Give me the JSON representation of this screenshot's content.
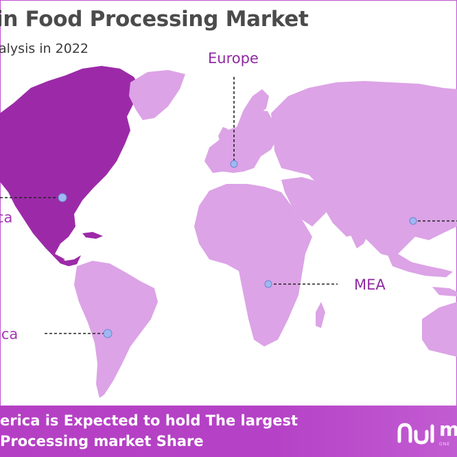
{
  "header": {
    "title": "in Food Processing Market",
    "subtitle": "alysis in 2022"
  },
  "map": {
    "regions": [
      {
        "name": "Europe",
        "label": "Europe"
      },
      {
        "name": "MEA",
        "label": "MEA"
      },
      {
        "name": "North America",
        "label_line1": "ca",
        "label_line2": ")"
      },
      {
        "name": "Latin America",
        "label": "ica"
      }
    ],
    "colors": {
      "highlight_region": "#9c2aa8",
      "other_regions": "#dca3e6",
      "marker": "#9fb8f2",
      "leader_line": "#222222"
    }
  },
  "banner": {
    "line1": "erica is Expected to hold The largest",
    "line2": "Processing market Share",
    "logo_text": "m",
    "logo_sub": "ONE"
  }
}
